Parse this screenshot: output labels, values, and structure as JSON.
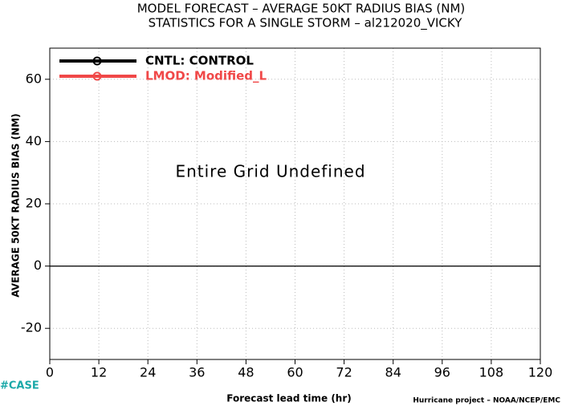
{
  "chart_data": {
    "type": "line",
    "title": "MODEL FORECAST – AVERAGE 50KT RADIUS BIAS (NM)",
    "subtitle": "STATISTICS FOR A SINGLE STORM – al212020_VICKY",
    "xlabel": "Forecast lead time (hr)",
    "ylabel": "AVERAGE 50KT RADIUS BIAS (NM)",
    "annotations": [
      "Entire Grid Undefined",
      "#CASE",
      "Hurricane project – NOAA/NCEP/EMC"
    ],
    "x": [],
    "series": [
      {
        "name": "CNTL: CONTROL",
        "color": "#000000",
        "values": []
      },
      {
        "name": "LMOD: Modified_L",
        "color": "#f04848",
        "values": []
      }
    ],
    "xlim": [
      0,
      120
    ],
    "xticks": [
      0,
      12,
      24,
      36,
      48,
      60,
      72,
      84,
      96,
      108,
      120
    ],
    "ylim": [
      -30,
      70
    ],
    "yticks": [
      -20,
      0,
      20,
      40,
      60
    ],
    "hline": 0,
    "grid": true,
    "legend": "upper left"
  }
}
